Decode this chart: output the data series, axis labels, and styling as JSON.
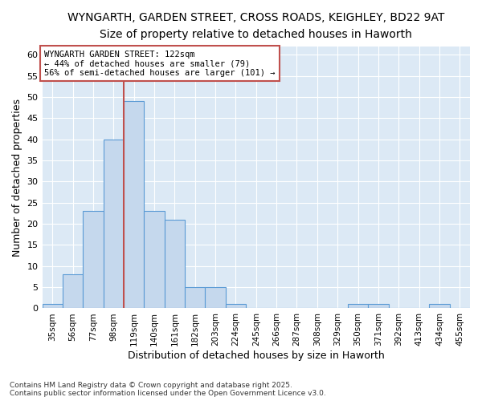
{
  "title1": "WYNGARTH, GARDEN STREET, CROSS ROADS, KEIGHLEY, BD22 9AT",
  "title2": "Size of property relative to detached houses in Haworth",
  "xlabel": "Distribution of detached houses by size in Haworth",
  "ylabel": "Number of detached properties",
  "categories": [
    "35sqm",
    "56sqm",
    "77sqm",
    "98sqm",
    "119sqm",
    "140sqm",
    "161sqm",
    "182sqm",
    "203sqm",
    "224sqm",
    "245sqm",
    "266sqm",
    "287sqm",
    "308sqm",
    "329sqm",
    "350sqm",
    "371sqm",
    "392sqm",
    "413sqm",
    "434sqm",
    "455sqm"
  ],
  "values": [
    1,
    8,
    23,
    40,
    49,
    23,
    21,
    5,
    5,
    1,
    0,
    0,
    0,
    0,
    0,
    1,
    1,
    0,
    0,
    1,
    0
  ],
  "bar_color": "#c5d8ed",
  "bar_edge_color": "#5b9bd5",
  "highlight_bar_index": 4,
  "highlight_bar_edge_color": "#c0504d",
  "red_line_x": 3.5,
  "ylim": [
    0,
    62
  ],
  "yticks": [
    0,
    5,
    10,
    15,
    20,
    25,
    30,
    35,
    40,
    45,
    50,
    55,
    60
  ],
  "annotation_title": "WYNGARTH GARDEN STREET: 122sqm",
  "annotation_line1": "← 44% of detached houses are smaller (79)",
  "annotation_line2": "56% of semi-detached houses are larger (101) →",
  "annotation_box_color": "#ffffff",
  "annotation_box_edge": "#c0504d",
  "footer_line1": "Contains HM Land Registry data © Crown copyright and database right 2025.",
  "footer_line2": "Contains public sector information licensed under the Open Government Licence v3.0.",
  "background_color": "#dce9f5",
  "grid_color": "#ffffff",
  "fig_bg_color": "#ffffff",
  "title1_fontsize": 11,
  "title2_fontsize": 10
}
